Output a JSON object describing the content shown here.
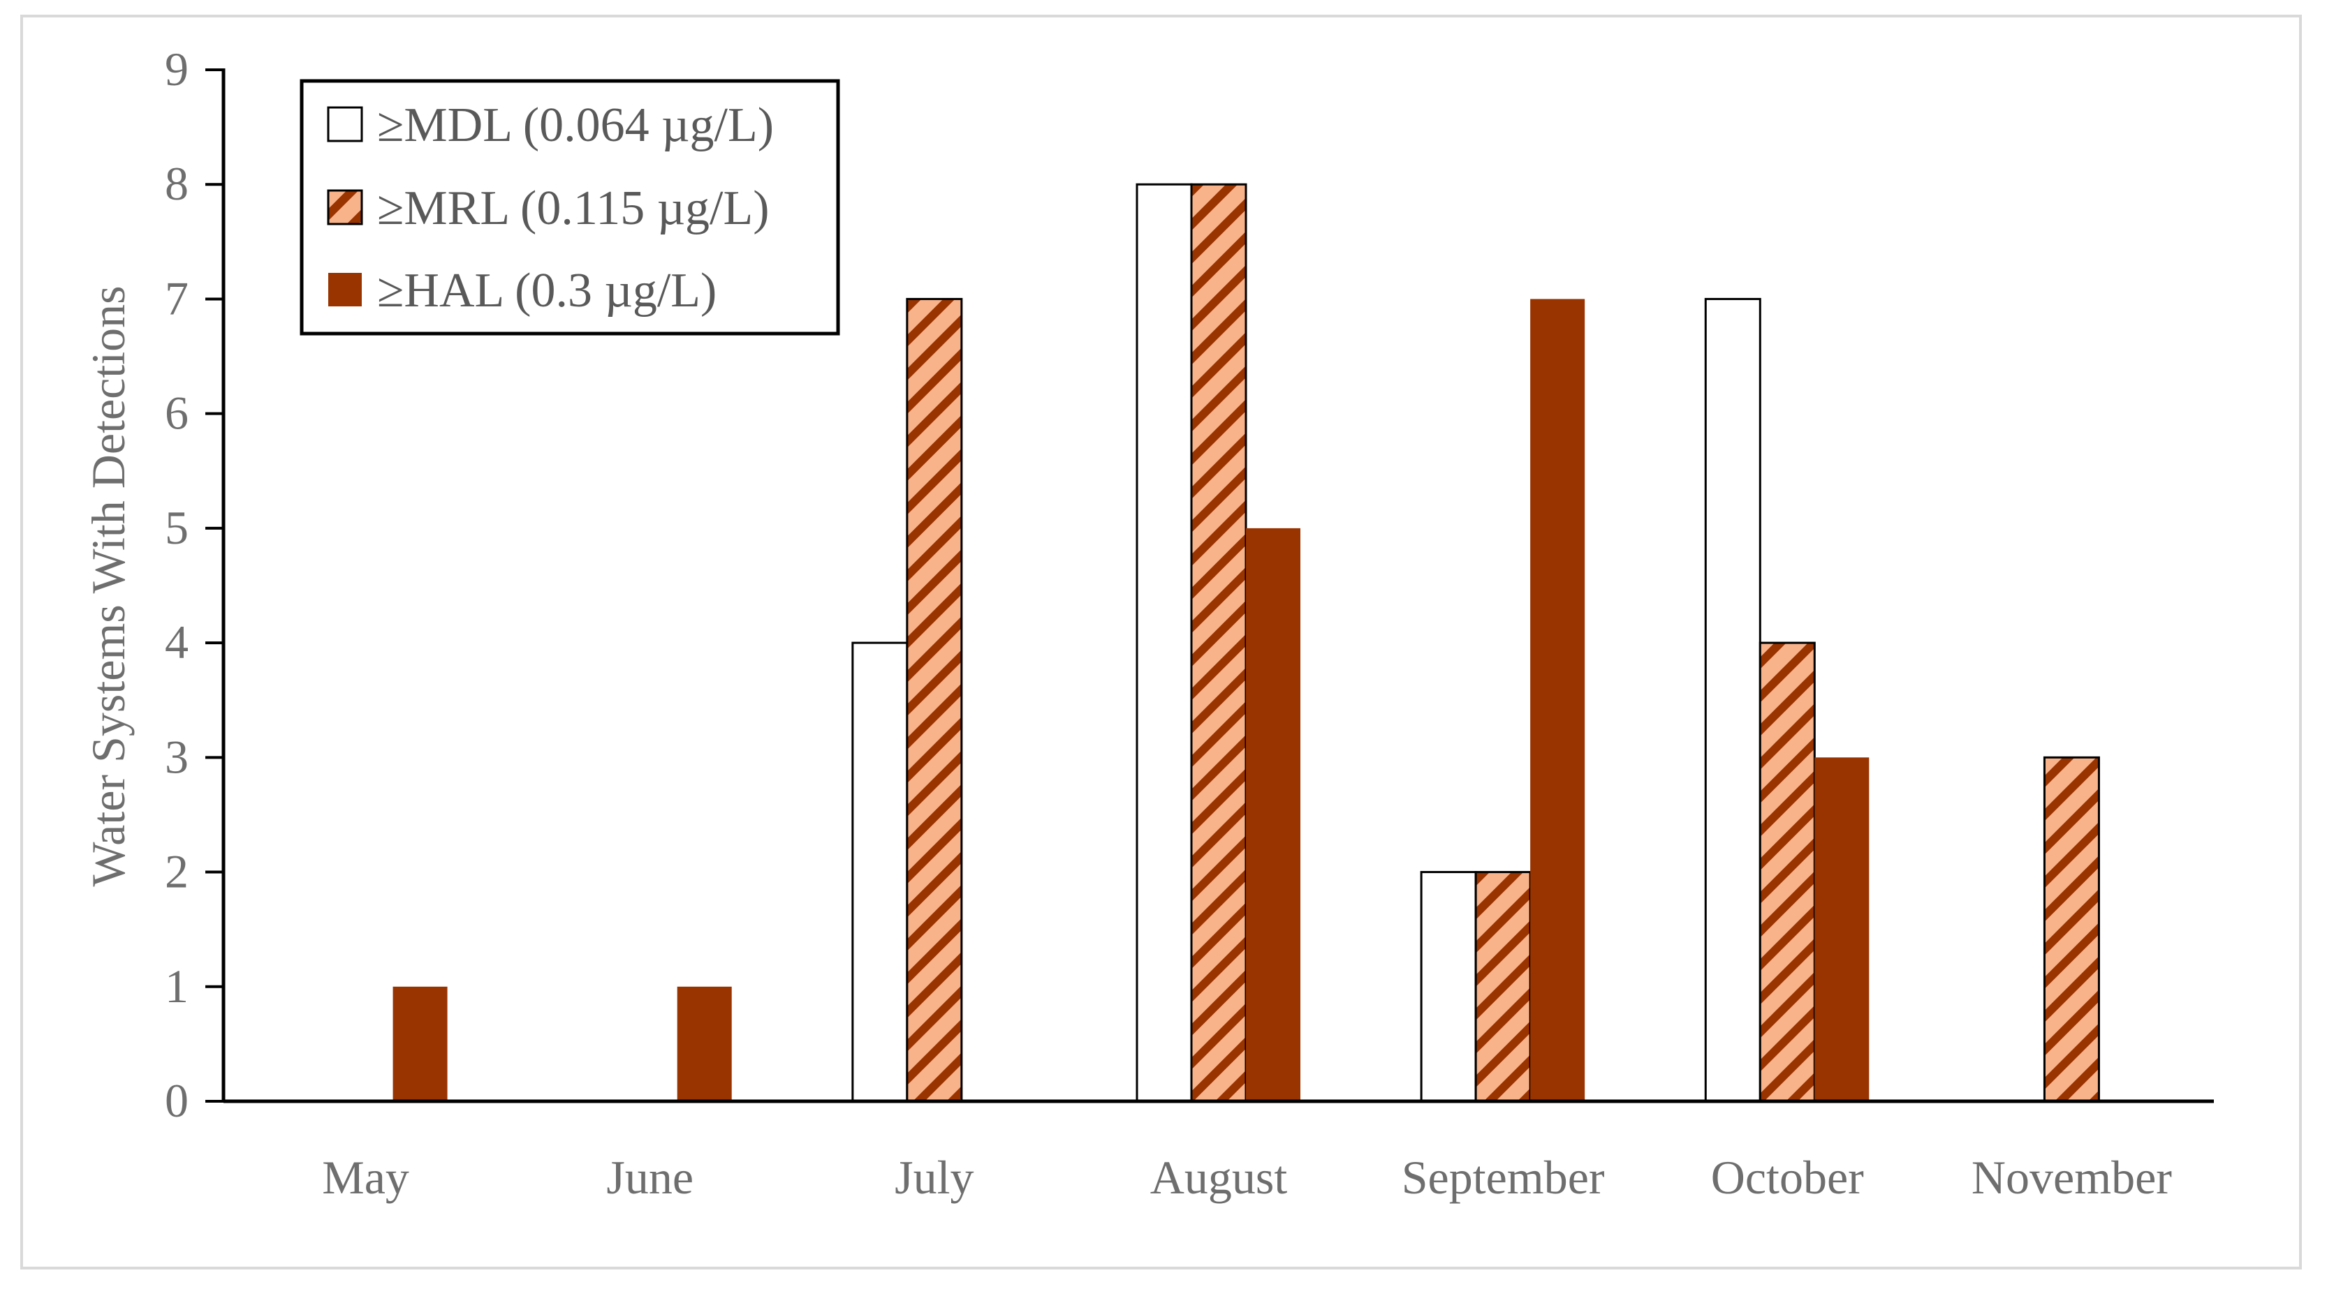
{
  "chart_data": {
    "type": "bar",
    "title": "",
    "xlabel": "",
    "ylabel": "Water Systems With Detections",
    "ylim": [
      0,
      9
    ],
    "yticks": [
      0,
      1,
      2,
      3,
      4,
      5,
      6,
      7,
      8,
      9
    ],
    "grid": false,
    "legend_position": "top-left",
    "categories": [
      "May",
      "June",
      "July",
      "August",
      "September",
      "October",
      "November"
    ],
    "series": [
      {
        "name": "≥MDL (0.064 µg/L)",
        "values": [
          0,
          0,
          4,
          8,
          2,
          7,
          0
        ],
        "fill": "#ffffff",
        "pattern": "solid"
      },
      {
        "name": "≥MRL (0.115 µg/L)",
        "values": [
          0,
          0,
          7,
          8,
          2,
          4,
          3
        ],
        "fill": "#f9b38a",
        "pattern": "diagonal-stripes",
        "stripe_color": "#993300"
      },
      {
        "name": "≥HAL (0.3 µg/L)",
        "values": [
          1,
          1,
          0,
          5,
          7,
          3,
          0
        ],
        "fill": "#993300",
        "pattern": "solid"
      }
    ]
  },
  "colors": {
    "axis": "#000000",
    "bar_outline": "#000000",
    "text": "#6e6e6e",
    "frame": "#d9d9d9"
  }
}
